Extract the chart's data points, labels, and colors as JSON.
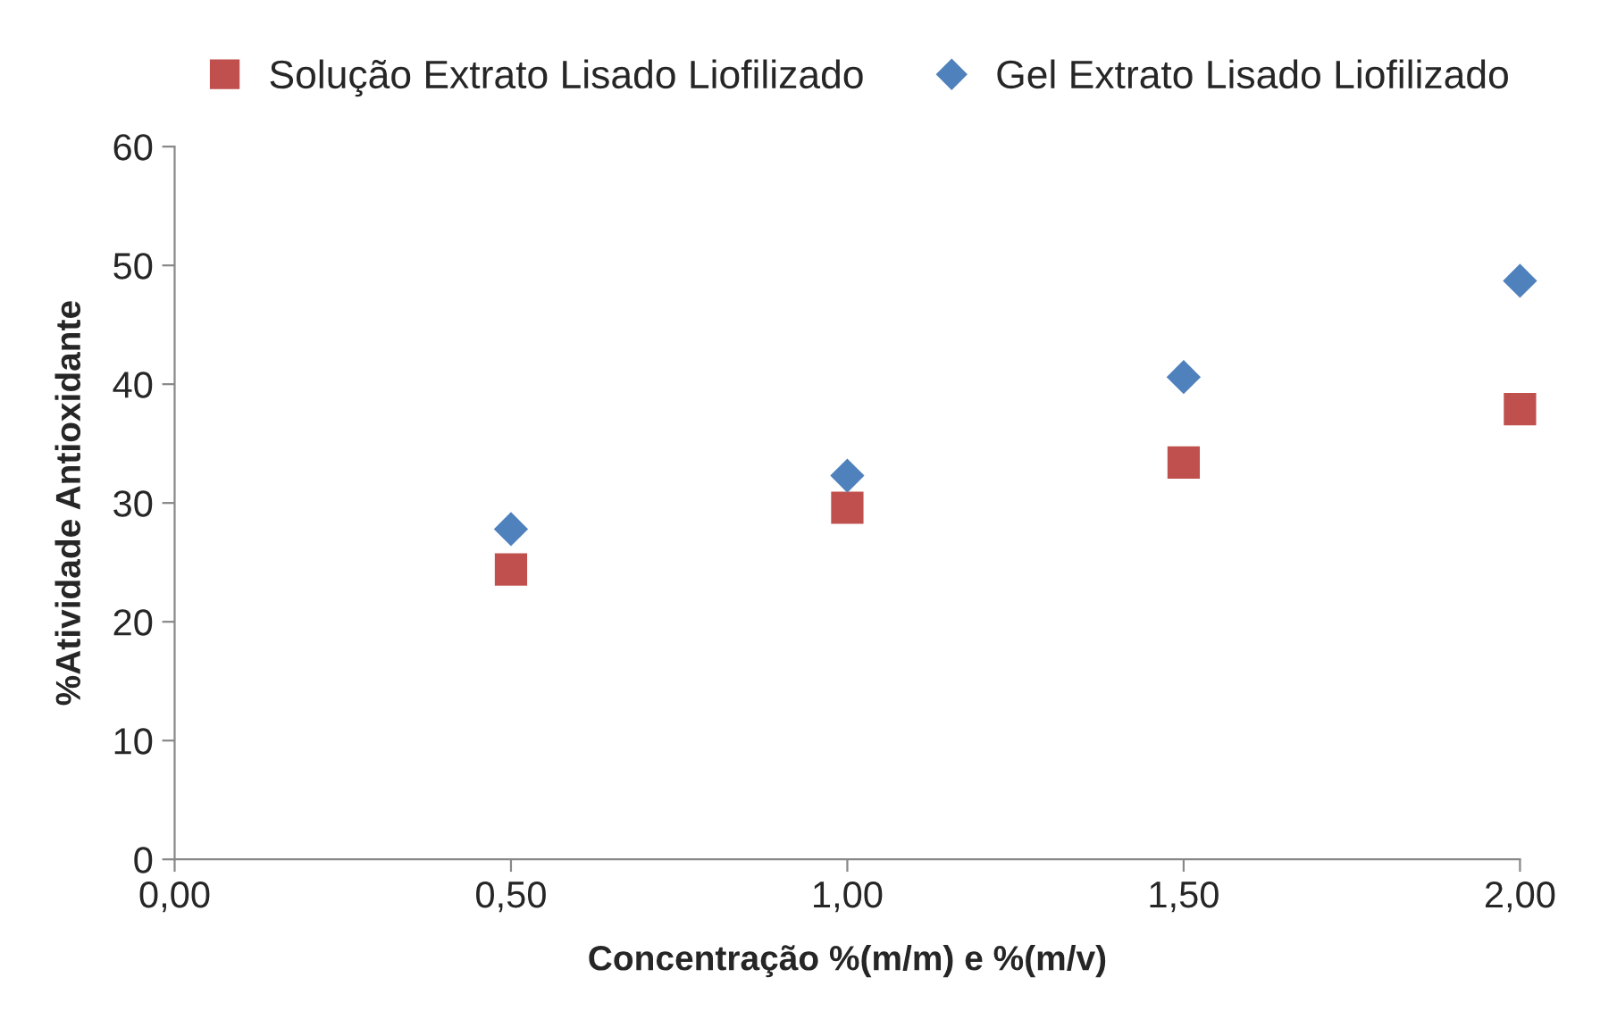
{
  "chart_data": {
    "type": "scatter",
    "xlabel": "Concentração %(m/m) e %(m/v)",
    "ylabel": "%Atividade Antioxidante",
    "x": [
      0.5,
      1.0,
      1.5,
      2.0
    ],
    "series": [
      {
        "name": "Solução Extrato Lisado Liofilizado",
        "color": "#c0504d",
        "marker": "square",
        "values": [
          24.4,
          29.6,
          33.4,
          37.9
        ]
      },
      {
        "name": "Gel Extrato Lisado Liofilizado",
        "color": "#4f81bd",
        "marker": "diamond",
        "values": [
          27.8,
          32.3,
          40.6,
          48.7
        ]
      }
    ],
    "xlim": [
      0,
      2
    ],
    "ylim": [
      0,
      60
    ],
    "xticks": [
      {
        "value": 0,
        "label": "0,00"
      },
      {
        "value": 0.5,
        "label": "0,50"
      },
      {
        "value": 1.0,
        "label": "1,00"
      },
      {
        "value": 1.5,
        "label": "1,50"
      },
      {
        "value": 2.0,
        "label": "2,00"
      }
    ],
    "yticks": [
      0,
      10,
      20,
      30,
      40,
      50,
      60
    ],
    "grid": false,
    "legend": "top"
  }
}
